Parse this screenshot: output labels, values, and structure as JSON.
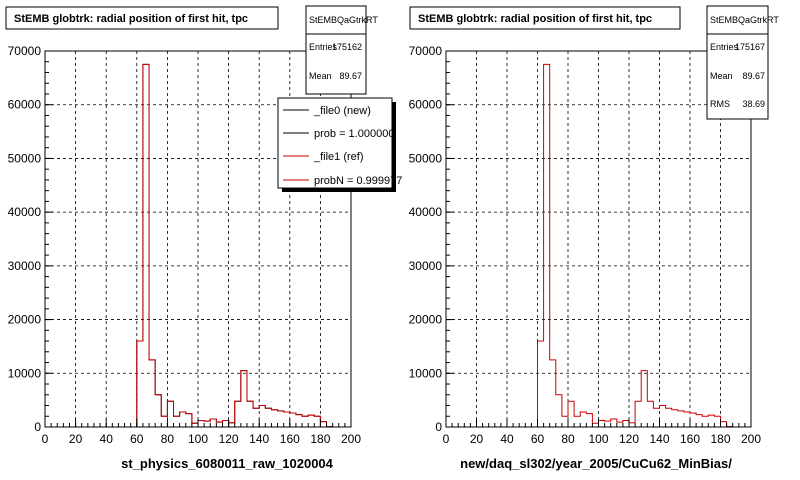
{
  "colors": {
    "new": "#000000",
    "ref": "#cc0000",
    "grid": "#000000"
  },
  "chart_data": [
    {
      "type": "bar",
      "title": "StEMB globtrk: radial position of first hit, tpc",
      "xlabel": "st_physics_6080011_raw_1020004",
      "ylabel": "",
      "xlim": [
        0,
        200
      ],
      "ylim": [
        0,
        70000
      ],
      "grid": true,
      "xticks": [
        "0",
        "20",
        "40",
        "60",
        "80",
        "100",
        "120",
        "140",
        "160",
        "180",
        "200"
      ],
      "yticks": [
        "0",
        "10000",
        "20000",
        "30000",
        "40000",
        "50000",
        "60000",
        "70000"
      ],
      "stats": {
        "name": "StEMBQaGtrkRT",
        "entries_label": "Entries",
        "entries": "175162",
        "mean_label": "Mean",
        "mean": "89.67"
      },
      "legend": [
        "_file0 (new)",
        "prob = 1.000000",
        "_file1 (ref)",
        "probN = 0.999977"
      ],
      "bin_width": 4,
      "series": [
        {
          "name": "_file0 (new)",
          "color": "#000000",
          "x": [
            0,
            4,
            8,
            12,
            16,
            20,
            24,
            28,
            32,
            36,
            40,
            44,
            48,
            52,
            56,
            60,
            64,
            68,
            72,
            76,
            80,
            84,
            88,
            92,
            96,
            100,
            104,
            108,
            112,
            116,
            120,
            124,
            128,
            132,
            136,
            140,
            144,
            148,
            152,
            156,
            160,
            164,
            168,
            172,
            176,
            180,
            184,
            188,
            192,
            196
          ],
          "values": [
            0,
            0,
            0,
            0,
            0,
            0,
            0,
            0,
            0,
            0,
            0,
            0,
            0,
            0,
            0,
            16000,
            67500,
            12500,
            6000,
            2000,
            4800,
            2000,
            2800,
            2500,
            700,
            1200,
            1100,
            1500,
            900,
            1200,
            800,
            4800,
            10500,
            4800,
            3500,
            4000,
            3500,
            3200,
            3000,
            2800,
            2600,
            2300,
            2000,
            2200,
            2000,
            1000,
            100,
            0,
            0,
            0
          ]
        },
        {
          "name": "_file1 (ref)",
          "color": "#cc0000",
          "x": [
            0,
            4,
            8,
            12,
            16,
            20,
            24,
            28,
            32,
            36,
            40,
            44,
            48,
            52,
            56,
            60,
            64,
            68,
            72,
            76,
            80,
            84,
            88,
            92,
            96,
            100,
            104,
            108,
            112,
            116,
            120,
            124,
            128,
            132,
            136,
            140,
            144,
            148,
            152,
            156,
            160,
            164,
            168,
            172,
            176,
            180,
            184,
            188,
            192,
            196
          ],
          "values": [
            0,
            0,
            0,
            0,
            0,
            0,
            0,
            0,
            0,
            0,
            0,
            0,
            0,
            0,
            0,
            16000,
            67500,
            12500,
            6000,
            2000,
            4800,
            2000,
            2800,
            2500,
            700,
            1200,
            1100,
            1500,
            900,
            1200,
            800,
            4800,
            10500,
            4800,
            3500,
            4000,
            3500,
            3200,
            3000,
            2800,
            2600,
            2300,
            2000,
            2200,
            2000,
            1000,
            100,
            0,
            0,
            0
          ]
        }
      ]
    },
    {
      "type": "bar",
      "title": "StEMB globtrk: radial position of first hit, tpc",
      "xlabel": "new/daq_sl302/year_2005/CuCu62_MinBias/",
      "ylabel": "",
      "xlim": [
        0,
        200
      ],
      "ylim": [
        0,
        70000
      ],
      "grid": true,
      "xticks": [
        "0",
        "20",
        "40",
        "60",
        "80",
        "100",
        "120",
        "140",
        "160",
        "180",
        "200"
      ],
      "yticks": [
        "0",
        "10000",
        "20000",
        "30000",
        "40000",
        "50000",
        "60000",
        "70000"
      ],
      "stats": {
        "name": "StEMBQaGtrkRT",
        "entries_label": "Entries",
        "entries": "175167",
        "mean_label": "Mean",
        "mean": "89.67",
        "rms_label": "RMS",
        "rms": "38.69"
      },
      "bin_width": 4,
      "series": [
        {
          "color": "#cc0000",
          "x": [
            0,
            4,
            8,
            12,
            16,
            20,
            24,
            28,
            32,
            36,
            40,
            44,
            48,
            52,
            56,
            60,
            64,
            68,
            72,
            76,
            80,
            84,
            88,
            92,
            96,
            100,
            104,
            108,
            112,
            116,
            120,
            124,
            128,
            132,
            136,
            140,
            144,
            148,
            152,
            156,
            160,
            164,
            168,
            172,
            176,
            180,
            184,
            188,
            192,
            196
          ],
          "values": [
            0,
            0,
            0,
            0,
            0,
            0,
            0,
            0,
            0,
            0,
            0,
            0,
            0,
            0,
            0,
            16000,
            67500,
            12500,
            6000,
            2000,
            4800,
            2000,
            2800,
            2500,
            700,
            1200,
            1100,
            1500,
            900,
            1200,
            800,
            4800,
            10500,
            4800,
            3500,
            4000,
            3500,
            3200,
            3000,
            2800,
            2600,
            2300,
            2000,
            2200,
            2000,
            1000,
            100,
            0,
            0,
            0
          ]
        }
      ]
    }
  ]
}
